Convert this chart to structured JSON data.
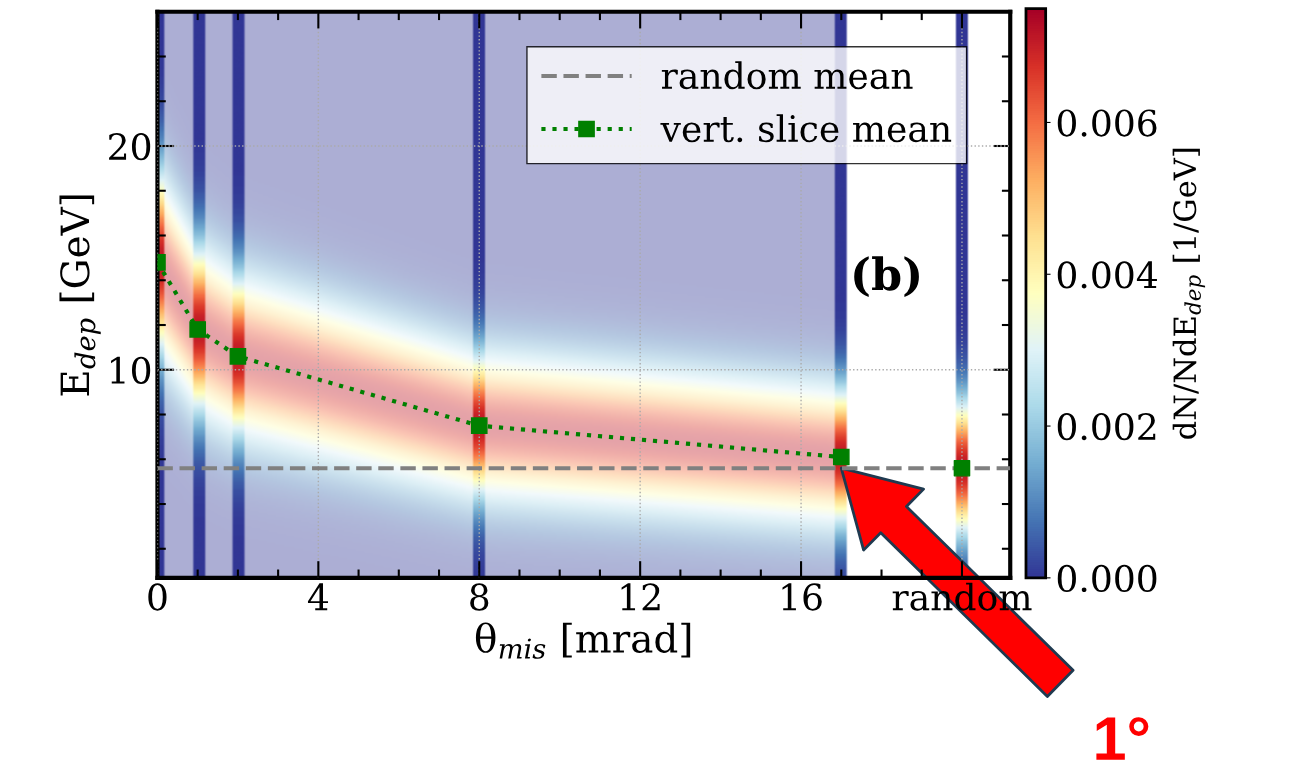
{
  "chart_data": {
    "type": "line",
    "xlabel": "θ$_{mis}$ [mrad]",
    "ylabel": "E$_{dep}$ [GeV]",
    "clabel": "dN/NdE$_{dep}$ [1/GeV]",
    "xlim": [
      0,
      21.2
    ],
    "ylim": [
      0.7,
      26
    ],
    "xticks": [
      0,
      {
        "value": 1,
        "label": null
      },
      {
        "value": 2,
        "label": null
      },
      {
        "value": 3,
        "label": null
      },
      4,
      {
        "value": 5,
        "label": null
      },
      {
        "value": 6,
        "label": null
      },
      {
        "value": 7,
        "label": null
      },
      8,
      {
        "value": 9,
        "label": null
      },
      {
        "value": 10,
        "label": null
      },
      {
        "value": 11,
        "label": null
      },
      12,
      {
        "value": 13,
        "label": null
      },
      {
        "value": 14,
        "label": null
      },
      {
        "value": 15,
        "label": null
      },
      16,
      {
        "value": 17,
        "label": null
      },
      {
        "value": 18,
        "label": null
      },
      {
        "value": 19,
        "label": null
      },
      {
        "value": 20,
        "label": "random"
      }
    ],
    "yticks": [
      {
        "value": 2,
        "label": null
      },
      {
        "value": 4,
        "label": null
      },
      {
        "value": 6,
        "label": null
      },
      {
        "value": 8,
        "label": null
      },
      10,
      {
        "value": 12,
        "label": null
      },
      {
        "value": 14,
        "label": null
      },
      {
        "value": 16,
        "label": null
      },
      {
        "value": 18,
        "label": null
      },
      20,
      {
        "value": 22,
        "label": null
      },
      {
        "value": 24,
        "label": null
      }
    ],
    "clim": [
      0,
      0.0075
    ],
    "cticks": [
      {
        "value": 0,
        "label": "0.000"
      },
      {
        "value": 0.002,
        "label": "0.002"
      },
      {
        "value": 0.004,
        "label": "0.004"
      },
      {
        "value": 0.006,
        "label": "0.006"
      }
    ],
    "grid": true,
    "legend": "top right",
    "series": [
      {
        "name": "vert. slice mean",
        "color": "#008000",
        "marker": "square",
        "line_style": "dotted",
        "x": [
          0,
          1,
          2,
          8,
          17
        ],
        "values": [
          14.8,
          11.8,
          10.6,
          7.5,
          6.1
        ]
      },
      {
        "type": "scatter",
        "color": "#008000",
        "marker": "square",
        "x": [
          20
        ],
        "values": [
          5.6
        ]
      }
    ],
    "ref_lines": [
      {
        "axis": "y",
        "value": 5.6,
        "label": "random mean",
        "color": "#808080",
        "line_style": "dashed"
      }
    ],
    "annotations": [
      "(b)",
      "1°"
    ]
  }
}
